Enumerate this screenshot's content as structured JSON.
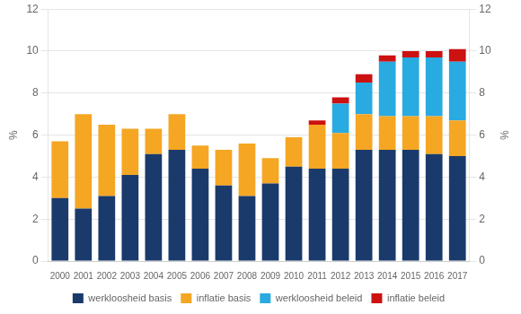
{
  "chart_data": {
    "type": "bar",
    "stacked": true,
    "categories": [
      "2000",
      "2001",
      "2002",
      "2003",
      "2004",
      "2005",
      "2006",
      "2007",
      "2008",
      "2009",
      "2010",
      "2011",
      "2012",
      "2013",
      "2014",
      "2015",
      "2016",
      "2017"
    ],
    "series": [
      {
        "name": "werkloosheid basis",
        "color": "#1a3a6b",
        "values": [
          3.0,
          2.5,
          3.1,
          4.1,
          5.1,
          5.3,
          4.4,
          3.6,
          3.1,
          3.7,
          4.5,
          4.4,
          4.4,
          5.3,
          5.3,
          5.3,
          5.1,
          5.0
        ]
      },
      {
        "name": "inflatie basis",
        "color": "#f5a623",
        "values": [
          2.7,
          4.5,
          3.4,
          2.2,
          1.2,
          1.7,
          1.1,
          1.7,
          2.5,
          1.2,
          1.4,
          2.1,
          1.7,
          1.7,
          1.6,
          1.6,
          1.8,
          1.7
        ]
      },
      {
        "name": "werkloosheid beleid",
        "color": "#29aae1",
        "values": [
          0.0,
          0.0,
          0.0,
          0.0,
          0.0,
          0.0,
          0.0,
          0.0,
          0.0,
          0.0,
          0.0,
          0.0,
          1.4,
          1.5,
          2.6,
          2.8,
          2.8,
          2.8
        ]
      },
      {
        "name": "inflatie beleid",
        "color": "#cc1111",
        "values": [
          0.0,
          0.0,
          0.0,
          0.0,
          0.0,
          0.0,
          0.0,
          0.0,
          0.0,
          0.0,
          0.0,
          0.2,
          0.3,
          0.4,
          0.3,
          0.3,
          0.3,
          0.6
        ]
      }
    ],
    "ylabel": "%",
    "y2label": "%",
    "ylim": [
      0,
      12
    ],
    "yticks": [
      0,
      2,
      4,
      6,
      8,
      10,
      12
    ],
    "y2lim": [
      0,
      12
    ],
    "y2ticks": [
      0,
      2,
      4,
      6,
      8,
      10,
      12
    ],
    "grid": true,
    "legend": "bottom"
  }
}
